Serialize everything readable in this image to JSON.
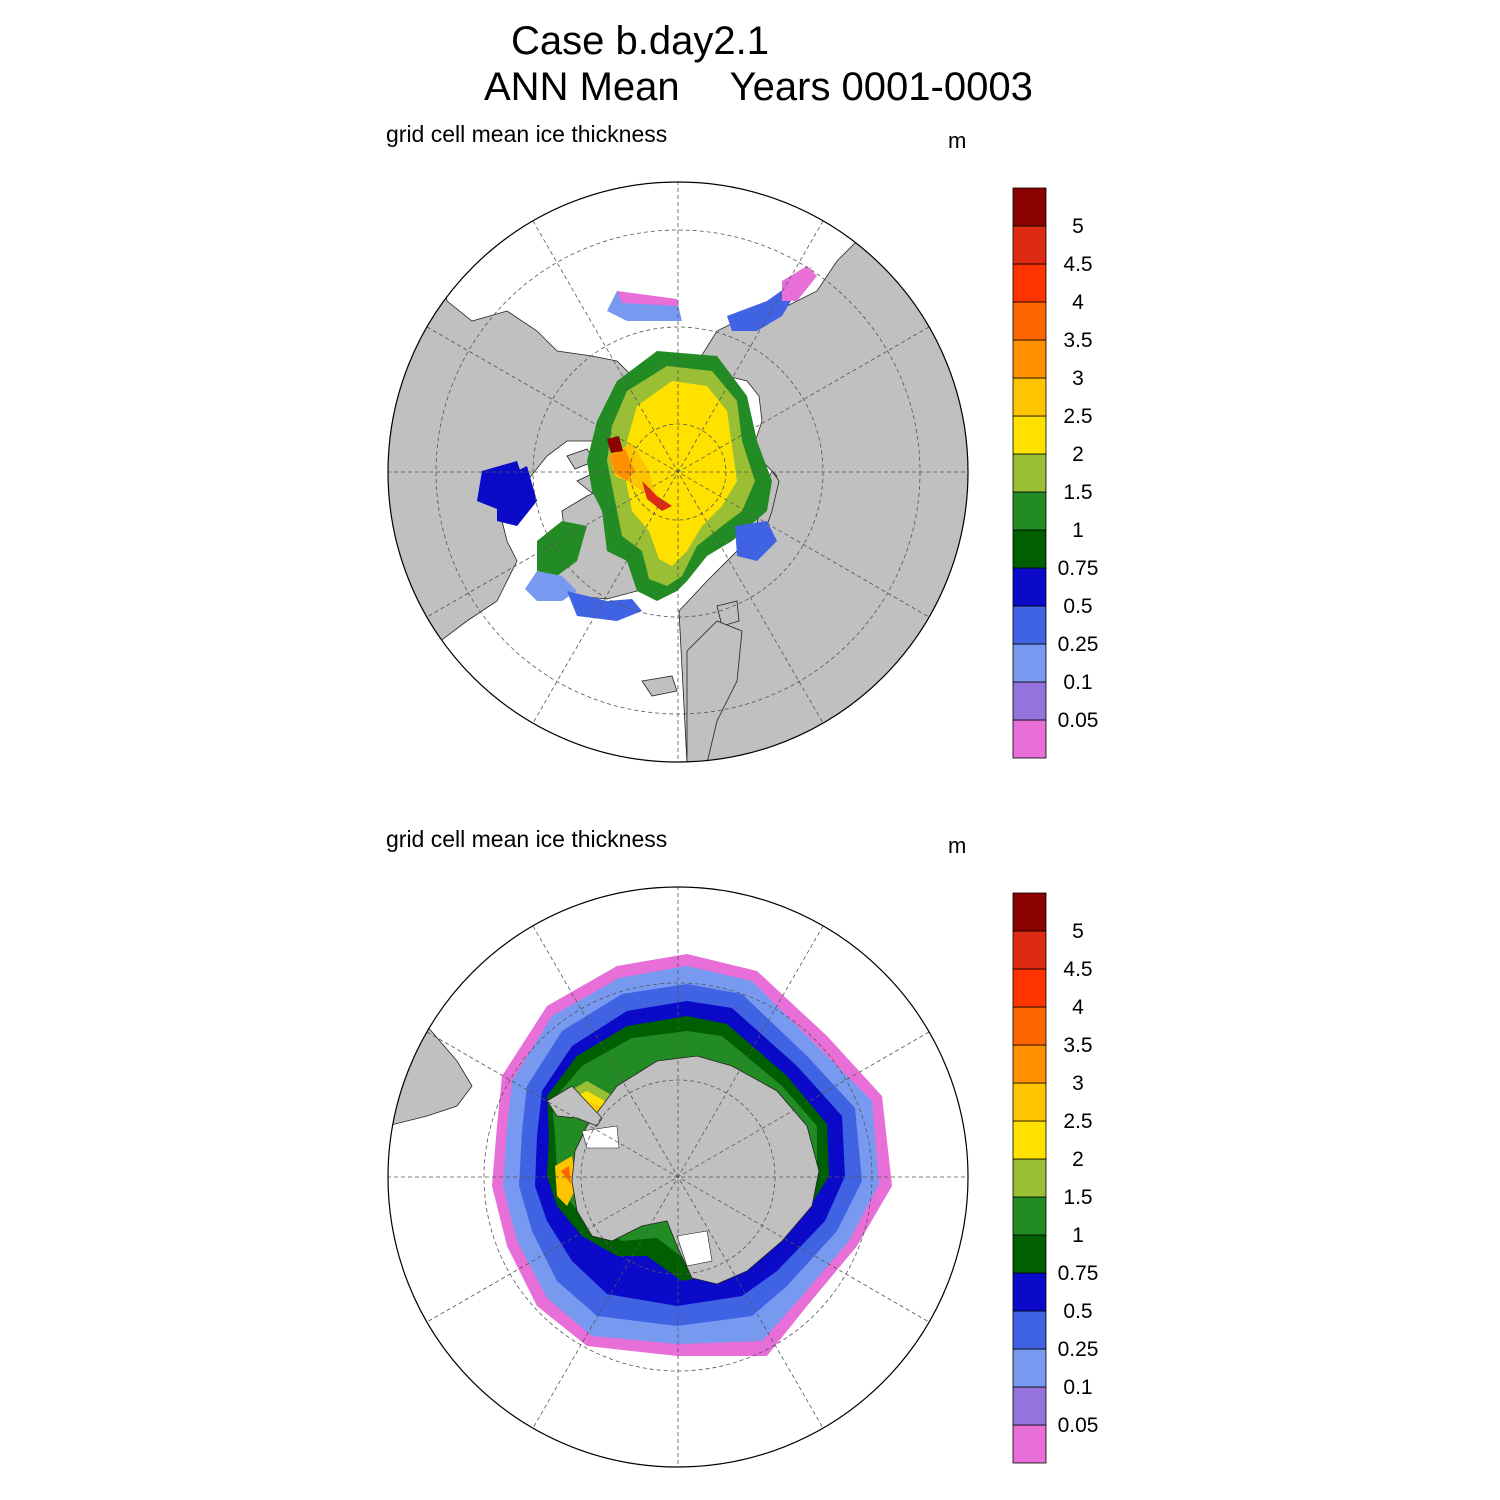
{
  "title": {
    "line1": "Case b.day2.1",
    "season": "ANN Mean",
    "years": "Years 0001-0003"
  },
  "panels": [
    {
      "id": "north",
      "label": "grid cell mean ice thickness",
      "unit": "m"
    },
    {
      "id": "south",
      "label": "grid cell mean ice thickness",
      "unit": "m"
    }
  ],
  "colorbar": {
    "levels": [
      "0.05",
      "0.1",
      "0.25",
      "0.5",
      "0.75",
      "1",
      "1.5",
      "2",
      "2.5",
      "3",
      "3.5",
      "4",
      "4.5",
      "5"
    ],
    "colors": [
      "#e76fd7",
      "#9673dc",
      "#7799f0",
      "#3f63e3",
      "#0a0ac8",
      "#005f00",
      "#238b23",
      "#9abf35",
      "#ffe100",
      "#ffc400",
      "#ff9100",
      "#ff6600",
      "#ff3300",
      "#dc2a13",
      "#8b0000"
    ]
  },
  "colors": {
    "land": "#c0c0c0",
    "ocean": "#ffffff",
    "grid": "#555555"
  }
}
